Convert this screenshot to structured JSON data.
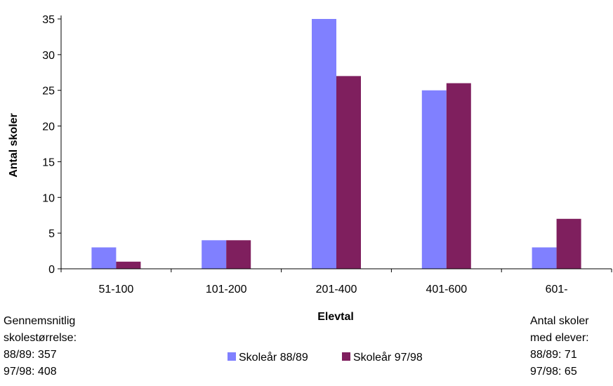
{
  "chart_data": {
    "type": "bar",
    "categories": [
      "51-100",
      "101-200",
      "201-400",
      "401-600",
      "601-"
    ],
    "series": [
      {
        "name": "Skoleår 88/89",
        "color": "#8080ff",
        "values": [
          3,
          4,
          35,
          25,
          3
        ]
      },
      {
        "name": "Skoleår 97/98",
        "color": "#7f1f5e",
        "values": [
          1,
          4,
          27,
          26,
          7
        ]
      }
    ],
    "xlabel": "Elevtal",
    "ylabel": "Antal skoler",
    "ylim": [
      0,
      35
    ],
    "yticks": [
      0,
      5,
      10,
      15,
      20,
      25,
      30,
      35
    ],
    "grid": false,
    "legend": "bottom-center"
  },
  "notes": {
    "left": [
      "Gennemsnitlig",
      "skolestørrelse:",
      "88/89: 357",
      "97/98: 408"
    ],
    "right": [
      "Antal skoler",
      "med elever:",
      "88/89: 71",
      "97/98: 65"
    ]
  }
}
